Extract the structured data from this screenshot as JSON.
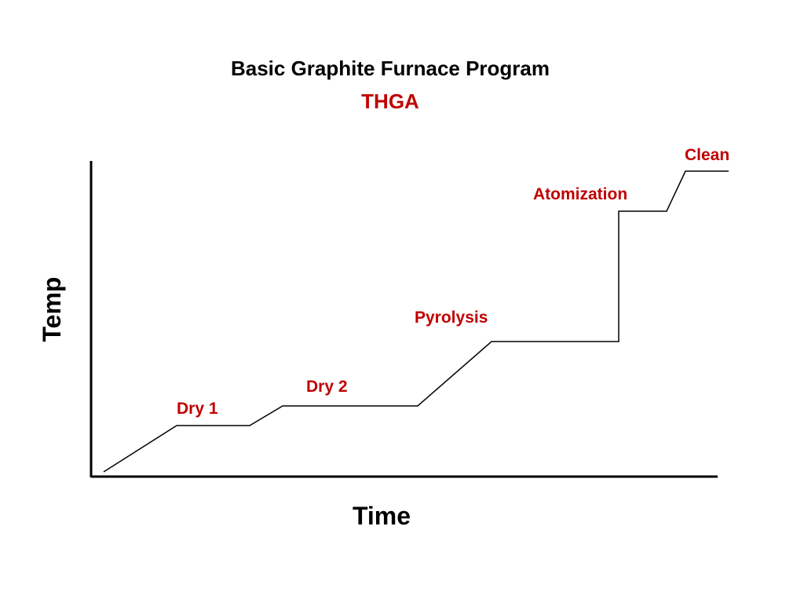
{
  "title": "Basic Graphite Furnace Program",
  "subtitle": "THGA",
  "axes": {
    "x_label": "Time",
    "y_label": "Temp"
  },
  "steps": {
    "dry1": "Dry 1",
    "dry2": "Dry 2",
    "pyrolysis": "Pyrolysis",
    "atomization": "Atomization",
    "clean": "Clean"
  },
  "colors": {
    "accent": "#c00000",
    "line": "#000000"
  }
}
